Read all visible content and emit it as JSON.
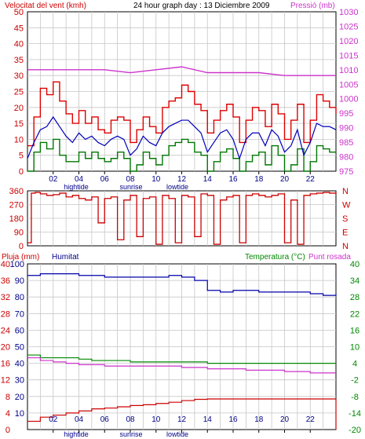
{
  "header": {
    "left": "Velocitat del vent (kmh)",
    "center": "24 hour graph day : 13 Diciembre 2009",
    "right": "Pressió (mb)"
  },
  "panel1": {
    "wind_ticks": [
      "50",
      "45",
      "40",
      "35",
      "30",
      "25",
      "20",
      "15",
      "10",
      "5",
      "0"
    ],
    "pressure_ticks": [
      "1030",
      "1025",
      "1020",
      "1015",
      "1010",
      "1005",
      "1000",
      "995",
      "990",
      "985",
      "980",
      "975"
    ],
    "hours": [
      "02",
      "04",
      "06",
      "08",
      "10",
      "12",
      "14",
      "16",
      "18",
      "20",
      "22"
    ],
    "events": [
      "hightide",
      "sunrise",
      "lowtide"
    ]
  },
  "panel2": {
    "dir_ticks": [
      "360",
      "270",
      "180",
      "90",
      "0"
    ],
    "compass": [
      "N",
      "W",
      "S",
      "E",
      "N"
    ]
  },
  "panel3": {
    "left_label": "Pluja (mm)",
    "hum_label": "Humitat",
    "right_label_a": "Temperatura (°C)",
    "right_label_b": "Punt rosada",
    "rain_ticks": [
      "40",
      "36",
      "32",
      "28",
      "24",
      "20",
      "16",
      "12",
      "8",
      "4",
      "0"
    ],
    "hum_ticks": [
      "100",
      "90",
      "80",
      "70",
      "60",
      "50",
      "40",
      "30",
      "20",
      "10"
    ],
    "temp_ticks": [
      "40",
      "34",
      "28",
      "22",
      "16",
      "10",
      "4",
      "-2",
      "-8",
      "-14",
      "-20"
    ],
    "hours": [
      "02",
      "04",
      "06",
      "08",
      "10",
      "12",
      "14",
      "16",
      "18",
      "20",
      "22"
    ],
    "events": [
      "hightide",
      "sunrise",
      "lowtide"
    ]
  },
  "colors": {
    "wind_gust": "#dd0000",
    "wind_avg": "#0000bb",
    "wind_low": "#007700",
    "pressure": "#cc33cc",
    "direction": "#cc0000",
    "rain": "#cc0000",
    "humidity": "#0000aa",
    "temperature": "#008800",
    "dewpoint": "#cc33cc",
    "grid": "#c6c6c6",
    "frame": "#000000"
  },
  "chart_data": [
    {
      "type": "line",
      "title": "24 hour graph day : 13 Diciembre 2009",
      "ylabel": "Velocitat del vent (kmh)",
      "ylabel_right": "Pressió (mb)",
      "x_range": [
        0,
        24
      ],
      "ylim": [
        0,
        50
      ],
      "ylim_right": [
        975,
        1030
      ],
      "grid": true,
      "series": [
        {
          "name": "Pressió (mb)",
          "axis": "right",
          "x": [
            0,
            2,
            4,
            6,
            8,
            10,
            12,
            14,
            16,
            18,
            20,
            22,
            24
          ],
          "values": [
            1010,
            1010,
            1010,
            1010,
            1009,
            1010,
            1011,
            1009,
            1009,
            1009,
            1008,
            1008,
            1008
          ]
        },
        {
          "name": "gust",
          "axis": "left",
          "x": [
            0,
            0.5,
            1,
            1.5,
            2,
            2.5,
            3,
            3.5,
            4,
            4.5,
            5,
            5.5,
            6,
            6.5,
            7,
            7.5,
            8,
            8.5,
            9,
            9.5,
            10,
            10.5,
            11,
            11.5,
            12,
            12.5,
            13,
            13.5,
            14,
            14.5,
            15,
            15.5,
            16,
            16.5,
            17,
            17.5,
            18,
            18.5,
            19,
            19.5,
            20,
            20.5,
            21,
            21.5,
            22,
            22.5,
            23,
            23.5,
            24
          ],
          "values": [
            8,
            17,
            26,
            24,
            28,
            22,
            18,
            15,
            19,
            15,
            17,
            13,
            12,
            16,
            17,
            16,
            9,
            13,
            17,
            14,
            12,
            20,
            22,
            23,
            27,
            25,
            21,
            19,
            12,
            16,
            19,
            21,
            17,
            9,
            16,
            20,
            19,
            14,
            21,
            18,
            10,
            16,
            21,
            9,
            16,
            24,
            22,
            20,
            18
          ]
        },
        {
          "name": "average",
          "axis": "left",
          "x": [
            0,
            0.5,
            1,
            1.5,
            2,
            2.5,
            3,
            3.5,
            4,
            4.5,
            5,
            5.5,
            6,
            6.5,
            7,
            7.5,
            8,
            8.5,
            9,
            9.5,
            10,
            10.5,
            11,
            11.5,
            12,
            12.5,
            13,
            13.5,
            14,
            14.5,
            15,
            15.5,
            16,
            16.5,
            17,
            17.5,
            18,
            18.5,
            19,
            19.5,
            20,
            20.5,
            21,
            21.5,
            22,
            22.5,
            23,
            23.5,
            24
          ],
          "values": [
            4,
            9,
            13,
            14,
            17,
            14,
            11,
            9,
            12,
            10,
            11,
            9,
            8,
            10,
            11,
            10,
            5,
            7,
            11,
            9,
            8,
            12,
            14,
            15,
            16,
            16,
            14,
            12,
            6,
            9,
            12,
            13,
            10,
            4,
            10,
            12,
            12,
            8,
            13,
            11,
            6,
            8,
            13,
            5,
            9,
            15,
            14,
            14,
            13
          ]
        },
        {
          "name": "low",
          "axis": "left",
          "x": [
            0,
            0.5,
            1,
            1.5,
            2,
            2.5,
            3,
            3.5,
            4,
            4.5,
            5,
            5.5,
            6,
            6.5,
            7,
            7.5,
            8,
            8.5,
            9,
            9.5,
            10,
            10.5,
            11,
            11.5,
            12,
            12.5,
            13,
            13.5,
            14,
            14.5,
            15,
            15.5,
            16,
            16.5,
            17,
            17.5,
            18,
            18.5,
            19,
            19.5,
            20,
            20.5,
            21,
            21.5,
            22,
            22.5,
            23,
            23.5,
            24
          ],
          "values": [
            0,
            6,
            9,
            7,
            10,
            5,
            3,
            3,
            6,
            4,
            6,
            4,
            3,
            4,
            6,
            4,
            0,
            2,
            6,
            4,
            2,
            5,
            8,
            9,
            10,
            9,
            6,
            5,
            0,
            3,
            6,
            7,
            4,
            0,
            3,
            5,
            6,
            2,
            8,
            5,
            0,
            2,
            7,
            0,
            3,
            8,
            7,
            6,
            6
          ]
        }
      ]
    },
    {
      "type": "line",
      "ylabel": "direction",
      "ylim": [
        0,
        360
      ],
      "x_range": [
        0,
        24
      ],
      "grid": true,
      "series": [
        {
          "name": "direction",
          "x": [
            0,
            0.3,
            0.6,
            1,
            1.5,
            2,
            2.5,
            3,
            3.5,
            4,
            4.5,
            5,
            5.5,
            6,
            6.5,
            7,
            7.5,
            8,
            8.5,
            9,
            9.5,
            10,
            10.5,
            11,
            11.5,
            12,
            12.5,
            13,
            13.5,
            14,
            14.5,
            15,
            15.5,
            16,
            16.5,
            17,
            17.5,
            18,
            18.5,
            19,
            19.5,
            20,
            20.5,
            21,
            21.5,
            22,
            22.5,
            23,
            23.5,
            24
          ],
          "values": [
            20,
            345,
            350,
            340,
            330,
            335,
            345,
            320,
            330,
            310,
            300,
            320,
            150,
            310,
            320,
            40,
            300,
            330,
            60,
            310,
            320,
            10,
            330,
            310,
            20,
            330,
            320,
            60,
            340,
            330,
            10,
            300,
            320,
            330,
            20,
            330,
            340,
            330,
            320,
            330,
            340,
            20,
            300,
            10,
            330,
            340,
            345,
            350,
            345,
            350
          ]
        }
      ]
    },
    {
      "type": "line",
      "ylabel": "Pluja (mm)",
      "ylabel_right": "Temperatura (°C)",
      "x_range": [
        0,
        24
      ],
      "ylim": [
        0,
        40
      ],
      "ylim_right": [
        -20,
        40
      ],
      "ylim_humidity": [
        0,
        100
      ],
      "grid": true,
      "series": [
        {
          "name": "Pluja (mm)",
          "axis": "rain",
          "x": [
            0,
            1,
            2,
            3,
            4,
            5,
            6,
            7,
            8,
            9,
            10,
            11,
            12,
            13,
            14,
            15,
            16,
            17,
            18,
            19,
            20,
            21,
            22,
            23,
            24
          ],
          "values": [
            2,
            3,
            3.5,
            4,
            4.5,
            5,
            5.2,
            5.5,
            5.8,
            6,
            6.3,
            6.6,
            7,
            7.3,
            7.4,
            7.4,
            7.4,
            7.4,
            7.4,
            7.4,
            7.4,
            7.4,
            7.4,
            7.4,
            7.4
          ]
        },
        {
          "name": "Humitat",
          "axis": "humidity",
          "x": [
            0,
            1,
            2,
            3,
            4,
            5,
            6,
            7,
            8,
            9,
            10,
            11,
            12,
            13,
            14,
            15,
            16,
            17,
            18,
            19,
            20,
            21,
            22,
            23,
            24
          ],
          "values": [
            93,
            94,
            94,
            94,
            93,
            93,
            92,
            92,
            92,
            92,
            92,
            93,
            92,
            90,
            84,
            83,
            84,
            84,
            83,
            83,
            83,
            83,
            82,
            81,
            82
          ]
        },
        {
          "name": "Temperatura (°C)",
          "axis": "temp",
          "x": [
            0,
            1,
            2,
            3,
            4,
            5,
            6,
            7,
            8,
            9,
            10,
            11,
            12,
            13,
            14,
            15,
            16,
            17,
            18,
            19,
            20,
            21,
            22,
            23,
            24
          ],
          "values": [
            7,
            6,
            6,
            6,
            5.5,
            5,
            5,
            5,
            4.5,
            4.5,
            4.5,
            4.5,
            4.5,
            4.5,
            4,
            4,
            4,
            4,
            4,
            4,
            4,
            4,
            4,
            4,
            4
          ]
        },
        {
          "name": "Punt rosada",
          "axis": "temp",
          "x": [
            0,
            1,
            2,
            3,
            4,
            5,
            6,
            7,
            8,
            9,
            10,
            11,
            12,
            13,
            14,
            15,
            16,
            17,
            18,
            19,
            20,
            21,
            22,
            23,
            24
          ],
          "values": [
            6,
            5,
            4.5,
            4,
            3.5,
            3.5,
            3,
            3,
            3,
            3,
            3,
            3,
            2.5,
            2.5,
            2,
            2,
            2,
            1.5,
            1.5,
            1.5,
            1,
            1,
            0.5,
            0.5,
            0.5
          ]
        }
      ]
    }
  ]
}
